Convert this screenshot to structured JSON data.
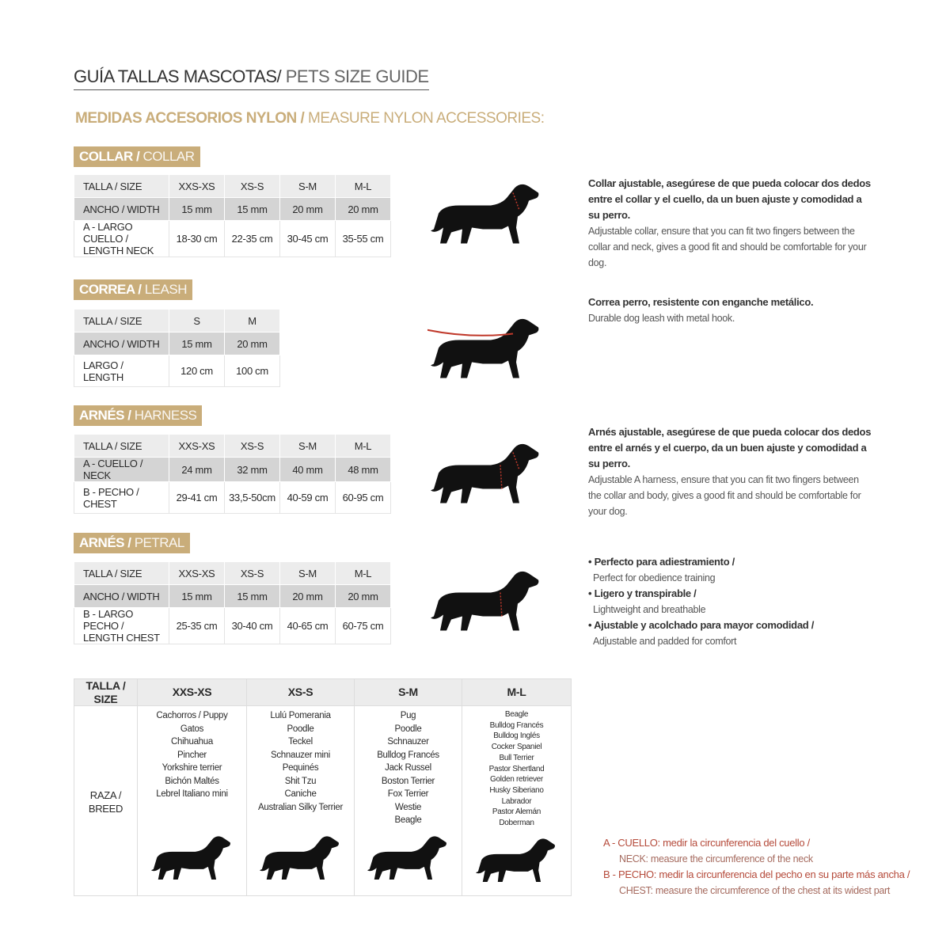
{
  "title": {
    "es": "GUÍA TALLAS MASCOTAS/",
    "en": " PETS SIZE GUIDE"
  },
  "subtitle": {
    "es": "MEDIDAS ACCESORIOS NYLON /",
    "en": " MEASURE NYLON ACCESSORIES:"
  },
  "colors": {
    "accent": "#c9ad7a",
    "red": "#b54a3a"
  },
  "sections": [
    {
      "tag_es": "COLLAR /",
      "tag_en": " COLLAR",
      "rows": [
        [
          "TALLA / SIZE",
          "XXS-XS",
          "XS-S",
          "S-M",
          "M-L"
        ],
        [
          "ANCHO / WIDTH",
          "15 mm",
          "15 mm",
          "20 mm",
          "20 mm"
        ],
        [
          "A - LARGO CUELLO / LENGTH NECK",
          "18-30 cm",
          "22-35 cm",
          "30-45 cm",
          "35-55 cm"
        ]
      ],
      "desc_es": "Collar ajustable, asegúrese de que pueda colocar dos dedos entre el collar y el cuello, da un buen ajuste y comodidad a su perro.",
      "desc_en": "Adjustable collar, ensure that you can fit two fingers between the collar and neck, gives a good fit and should be comfortable for your dog."
    },
    {
      "tag_es": "CORREA /",
      "tag_en": " LEASH",
      "rows": [
        [
          "TALLA / SIZE",
          "S",
          "M"
        ],
        [
          "ANCHO / WIDTH",
          "15 mm",
          "20 mm"
        ],
        [
          "LARGO / LENGTH",
          "120 cm",
          "100 cm"
        ]
      ],
      "desc_es": "Correa perro, resistente con enganche metálico.",
      "desc_en": "Durable dog leash with metal hook."
    },
    {
      "tag_es": "ARNÉS /",
      "tag_en": " HARNESS",
      "rows": [
        [
          "TALLA / SIZE",
          "XXS-XS",
          "XS-S",
          "S-M",
          "M-L"
        ],
        [
          "A - CUELLO / NECK",
          "24 mm",
          "32 mm",
          "40 mm",
          "48 mm"
        ],
        [
          "B - PECHO / CHEST",
          "29-41 cm",
          "33,5-50cm",
          "40-59 cm",
          "60-95 cm"
        ]
      ],
      "desc_es": "Arnés ajustable, asegúrese de que pueda colocar dos dedos entre el arnés y el cuerpo, da un buen ajuste y comodidad a su perro.",
      "desc_en": "Adjustable A harness, ensure that you can fit two fingers between the collar and body, gives a good fit and should be comfortable for your dog."
    },
    {
      "tag_es": "ARNÉS /",
      "tag_en": " PETRAL",
      "rows": [
        [
          "TALLA / SIZE",
          "XXS-XS",
          "XS-S",
          "S-M",
          "M-L"
        ],
        [
          "ANCHO / WIDTH",
          "15 mm",
          "15 mm",
          "20 mm",
          "20 mm"
        ],
        [
          "B - LARGO PECHO / LENGTH CHEST",
          "25-35 cm",
          "30-40 cm",
          "40-65 cm",
          "60-75 cm"
        ]
      ],
      "bullets": [
        {
          "es": "• Perfecto para adiestramiento /",
          "en": "Perfect for obedience training"
        },
        {
          "es": "• Ligero y transpirable /",
          "en": "Lightweight and breathable"
        },
        {
          "es": "• Ajustable y acolchado para mayor comodidad /",
          "en": "Adjustable and padded for comfort"
        }
      ]
    }
  ],
  "breed_table": {
    "header": [
      "TALLA /  SIZE",
      "XXS-XS",
      "XS-S",
      "S-M",
      "M-L"
    ],
    "row_label": "RAZA / BREED",
    "breeds": [
      [
        "Cachorros / Puppy",
        "Gatos",
        "Chihuahua",
        "Pincher",
        "Yorkshire terrier",
        "Bichón Maltés",
        "Lebrel Italiano mini"
      ],
      [
        "Lulú Pomerania",
        "Poodle",
        "Teckel",
        "Schnauzer mini",
        "Pequinés",
        "Shit Tzu",
        "Caniche",
        "Australian Silky Terrier"
      ],
      [
        "Pug",
        "Poodle",
        "Schnauzer",
        "Bulldog Francés",
        "Jack Russel",
        "Boston Terrier",
        "Fox Terrier",
        "Westie",
        "Beagle"
      ],
      [
        "Beagle",
        "Bulldog Francés",
        "Bulldog Inglés",
        "Cocker Spaniel",
        "Bull Terrier",
        "Pastor Shertland",
        "Golden retriever",
        "Husky Siberiano",
        "Labrador",
        "Pastor Alemán",
        "Doberman"
      ]
    ]
  },
  "notes": [
    {
      "es": "A - CUELLO: medir la circunferencia del cuello /",
      "en": "NECK: measure the circumference of the neck"
    },
    {
      "es": "B - PECHO: medir la circunferencia del pecho en su parte más ancha /",
      "en": "CHEST: measure the circumference of the chest at its widest part"
    }
  ]
}
